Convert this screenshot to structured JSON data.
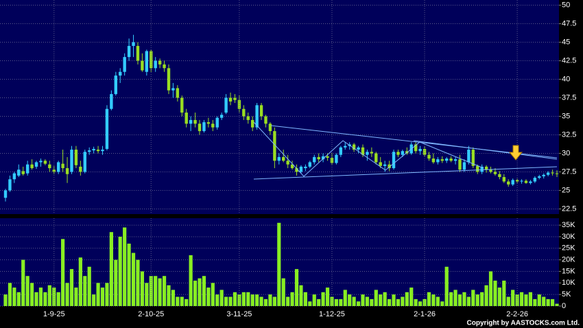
{
  "chart_data": [
    {
      "type": "candlestick",
      "up_color": "#33ccff",
      "down_color": "#99dd22",
      "ylim": [
        21.8,
        50.7
      ],
      "yticks": [
        22.5,
        25,
        27.5,
        30,
        32.5,
        35,
        37.5,
        40,
        42.5,
        45,
        47.5,
        50
      ],
      "grid": true,
      "ohlc": [
        [
          24,
          25.2,
          23.5,
          25
        ],
        [
          25,
          27,
          24.8,
          26.5
        ],
        [
          26.5,
          27.5,
          26,
          27.3
        ],
        [
          27,
          28.5,
          26.8,
          27.8
        ],
        [
          27.6,
          28.2,
          27,
          27.2
        ],
        [
          27.3,
          29,
          27,
          28.5
        ],
        [
          28.5,
          29.2,
          27.8,
          28
        ],
        [
          28.2,
          29,
          27.9,
          28.8
        ],
        [
          28.8,
          29.3,
          28.2,
          29
        ],
        [
          29,
          29.2,
          28.4,
          28.6
        ],
        [
          28.5,
          29,
          27.5,
          28
        ],
        [
          27.8,
          28.3,
          27.2,
          27.5
        ],
        [
          27.5,
          29,
          27.2,
          28.8
        ],
        [
          28.6,
          30.5,
          27.5,
          28
        ],
        [
          28,
          29.5,
          26,
          27.2
        ],
        [
          27.5,
          31,
          27.2,
          30.5
        ],
        [
          30.5,
          31,
          28,
          28.4
        ],
        [
          28.2,
          29,
          27,
          27.5
        ],
        [
          27.5,
          30.5,
          27.3,
          30.2
        ],
        [
          30.2,
          30.8,
          29.8,
          30.4
        ],
        [
          30.4,
          30.9,
          30,
          30.6
        ],
        [
          30.5,
          31,
          30,
          30.3
        ],
        [
          30.3,
          31,
          29.8,
          30.5
        ],
        [
          30.6,
          36.5,
          30.4,
          36
        ],
        [
          36,
          38.5,
          35.8,
          38
        ],
        [
          38,
          41,
          37.8,
          40.5
        ],
        [
          40.5,
          41.5,
          39.5,
          41
        ],
        [
          41,
          43.5,
          40.5,
          43
        ],
        [
          43,
          45.5,
          42.5,
          44.5
        ],
        [
          44.5,
          46,
          43,
          45
        ],
        [
          44.5,
          45,
          42,
          42.5
        ],
        [
          42.5,
          43.5,
          41,
          41.2
        ],
        [
          41,
          44,
          40.5,
          43.8
        ],
        [
          43.8,
          44,
          41,
          41.5
        ],
        [
          41.5,
          43,
          41,
          42.5
        ],
        [
          42.5,
          42.8,
          41.5,
          42
        ],
        [
          42,
          42.5,
          41,
          41.5
        ],
        [
          41.5,
          42,
          38,
          38.5
        ],
        [
          38.5,
          39.5,
          37.5,
          38.8
        ],
        [
          38.8,
          39.2,
          37,
          37.5
        ],
        [
          37.5,
          37.8,
          35,
          35.5
        ],
        [
          35.5,
          36,
          33.5,
          34
        ],
        [
          34,
          35,
          33,
          34.5
        ],
        [
          34.5,
          35.5,
          33.5,
          34
        ],
        [
          34,
          34.5,
          32.5,
          33
        ],
        [
          33,
          34.5,
          32.8,
          34.2
        ],
        [
          34.2,
          34.8,
          33.5,
          34
        ],
        [
          34,
          34.5,
          33,
          33.5
        ],
        [
          33.5,
          35,
          33.2,
          34.8
        ],
        [
          34.8,
          35.5,
          34.5,
          35.2
        ],
        [
          35.5,
          38,
          35.3,
          37.5
        ],
        [
          37.5,
          38.2,
          36.5,
          37
        ],
        [
          37.5,
          38,
          36.8,
          37.2
        ],
        [
          37.2,
          37.8,
          35.5,
          36
        ],
        [
          36,
          36.5,
          34.5,
          35
        ],
        [
          35,
          35.5,
          34,
          34.5
        ],
        [
          34.5,
          35,
          33,
          33.5
        ],
        [
          33.5,
          36.8,
          33.2,
          36.5
        ],
        [
          36.5,
          36.8,
          34.5,
          35
        ],
        [
          35,
          35.2,
          33.5,
          34
        ],
        [
          34,
          34.2,
          32.5,
          33
        ],
        [
          33,
          33.5,
          28,
          29
        ],
        [
          29,
          30,
          28.5,
          29.5
        ],
        [
          29.5,
          30.5,
          28.8,
          29
        ],
        [
          29,
          29.8,
          28,
          28.5
        ],
        [
          28.5,
          29,
          27.8,
          28
        ],
        [
          28,
          28.5,
          27,
          27.5
        ],
        [
          27.5,
          28.4,
          27.3,
          28.2
        ],
        [
          28,
          28.5,
          27.6,
          28.2
        ],
        [
          28.2,
          29,
          28,
          28.8
        ],
        [
          28.8,
          29.8,
          28.5,
          29.5
        ],
        [
          29.5,
          30,
          28.8,
          29.2
        ],
        [
          29.2,
          30,
          28.8,
          29.6
        ],
        [
          29.6,
          30,
          29,
          29.4
        ],
        [
          29.4,
          30,
          28.5,
          28.7
        ],
        [
          28.7,
          30,
          28.5,
          29.8
        ],
        [
          29.8,
          31,
          29.5,
          30.8
        ],
        [
          30.8,
          31.5,
          30.5,
          31
        ],
        [
          31,
          31.5,
          30.5,
          31.2
        ],
        [
          31.2,
          31.4,
          30.2,
          30.5
        ],
        [
          30.5,
          31,
          30,
          30.8
        ],
        [
          30.8,
          31.2,
          29.5,
          29.8
        ],
        [
          29.8,
          30.5,
          29,
          30.2
        ],
        [
          30.2,
          30.8,
          29.5,
          30
        ],
        [
          30,
          30.2,
          28.5,
          28.8
        ],
        [
          28.8,
          29.5,
          28,
          28.3
        ],
        [
          28.3,
          29,
          27.5,
          28.5
        ],
        [
          28.5,
          29,
          27.6,
          28
        ],
        [
          28,
          30.5,
          27.8,
          30.2
        ],
        [
          30.2,
          30.5,
          29.5,
          29.8
        ],
        [
          29.8,
          30.5,
          29.5,
          30.3
        ],
        [
          30.3,
          30.8,
          29.8,
          30
        ],
        [
          30,
          31.5,
          29.8,
          31.2
        ],
        [
          31.2,
          31.5,
          30,
          30.3
        ],
        [
          30.3,
          31,
          29.8,
          30.6
        ],
        [
          30.6,
          31,
          29.6,
          29.8
        ],
        [
          29.8,
          30.2,
          29,
          29.3
        ],
        [
          29.3,
          30,
          28.6,
          28.8
        ],
        [
          28.8,
          29.5,
          28.5,
          29.2
        ],
        [
          29.2,
          29.6,
          28.7,
          29
        ],
        [
          29,
          29.5,
          28.7,
          29.3
        ],
        [
          29.3,
          29.6,
          28.8,
          29
        ],
        [
          29,
          29.5,
          28.5,
          29.2
        ],
        [
          29.2,
          29.8,
          27.5,
          27.8
        ],
        [
          27.8,
          29.2,
          27.5,
          28.8
        ],
        [
          28.8,
          31,
          28.5,
          30.5
        ],
        [
          30.5,
          30.8,
          28,
          28.3
        ],
        [
          28.3,
          28.5,
          27.2,
          27.5
        ],
        [
          27.5,
          28.5,
          27.2,
          28.2
        ],
        [
          28.2,
          28.4,
          27.4,
          27.8
        ],
        [
          27.8,
          28.2,
          27.3,
          27.5
        ],
        [
          27.5,
          28,
          27,
          27.2
        ],
        [
          27.2,
          27.6,
          26.5,
          26.8
        ],
        [
          26.8,
          27.2,
          26,
          26.2
        ],
        [
          26.2,
          26.5,
          25.5,
          25.8
        ],
        [
          25.8,
          26.6,
          25.6,
          26.4
        ],
        [
          26.4,
          26.6,
          26,
          26.2
        ],
        [
          26.2,
          26.5,
          25.9,
          26.3
        ],
        [
          26.3,
          26.5,
          25.9,
          26
        ],
        [
          26,
          26.4,
          25.8,
          26.2
        ],
        [
          26.2,
          26.9,
          26,
          26.7
        ],
        [
          26.7,
          27.1,
          26.5,
          26.9
        ],
        [
          26.9,
          27.3,
          26.6,
          27.1
        ],
        [
          27.1,
          27.6,
          26.9,
          27.4
        ],
        [
          27.4,
          27.8,
          27,
          27.3
        ],
        [
          27.3,
          27.7,
          26.8,
          27.2
        ]
      ]
    },
    {
      "type": "bar",
      "color": "#88ee22",
      "ylim": [
        0,
        38000
      ],
      "grid": true,
      "yticks": [
        0,
        {
          "value": 5000,
          "label": "5K"
        },
        {
          "value": 10000,
          "label": "10K"
        },
        {
          "value": 15000,
          "label": "15K"
        },
        {
          "value": 20000,
          "label": "20K"
        },
        {
          "value": 25000,
          "label": "25K"
        },
        {
          "value": 30000,
          "label": "30K"
        },
        {
          "value": 35000,
          "label": "35K"
        }
      ],
      "categories": [
        null,
        null,
        null,
        null,
        null,
        null,
        null,
        null,
        null,
        null,
        null,
        "1-9-25",
        null,
        null,
        null,
        null,
        null,
        null,
        null,
        null,
        null,
        null,
        null,
        null,
        null,
        null,
        null,
        null,
        null,
        null,
        null,
        null,
        null,
        "2-10-25",
        null,
        null,
        null,
        null,
        null,
        null,
        null,
        null,
        null,
        null,
        null,
        null,
        null,
        null,
        null,
        null,
        null,
        null,
        null,
        "3-11-25",
        null,
        null,
        null,
        null,
        null,
        null,
        null,
        null,
        null,
        null,
        null,
        null,
        null,
        null,
        null,
        null,
        null,
        null,
        null,
        null,
        "1-12-25",
        null,
        null,
        null,
        null,
        null,
        null,
        null,
        null,
        null,
        null,
        null,
        null,
        null,
        null,
        null,
        null,
        null,
        null,
        null,
        null,
        "2-1-26",
        null,
        null,
        null,
        null,
        null,
        null,
        null,
        null,
        null,
        null,
        null,
        null,
        null,
        null,
        null,
        null,
        null,
        null,
        null,
        null,
        "2-2-26",
        null,
        null,
        null,
        null,
        null,
        null,
        null,
        null,
        null
      ],
      "values": [
        5000,
        10000,
        8000,
        6000,
        20000,
        13000,
        10000,
        6000,
        8000,
        6000,
        9000,
        8000,
        6000,
        29000,
        10000,
        16000,
        8000,
        21000,
        13000,
        17000,
        5000,
        10000,
        8000,
        10000,
        32000,
        20000,
        30000,
        34000,
        27000,
        23000,
        20000,
        15000,
        10000,
        13000,
        13000,
        12000,
        13000,
        9000,
        7000,
        4000,
        4000,
        3000,
        22000,
        11000,
        12000,
        13000,
        8000,
        10000,
        5000,
        7000,
        4000,
        4000,
        6000,
        5000,
        6000,
        6000,
        5000,
        5000,
        4000,
        3000,
        5000,
        4000,
        36000,
        12000,
        4000,
        6000,
        16000,
        9000,
        6000,
        2000,
        5000,
        3000,
        6000,
        8000,
        4000,
        3000,
        3000,
        7000,
        5000,
        4000,
        2000,
        5000,
        4000,
        3000,
        7000,
        5000,
        6000,
        3000,
        5000,
        3000,
        4000,
        6000,
        8000,
        3000,
        2000,
        3000,
        6000,
        5000,
        4000,
        2000,
        17000,
        6000,
        7000,
        5000,
        6000,
        4000,
        7000,
        5000,
        6000,
        9000,
        15000,
        11000,
        8000,
        11000,
        4000,
        7000,
        5000,
        6000,
        5000,
        6000,
        3000,
        5000,
        4000,
        3000,
        3000,
        1000
      ]
    }
  ],
  "copyright": "Copyright by AASTOCKS.com Ltd."
}
